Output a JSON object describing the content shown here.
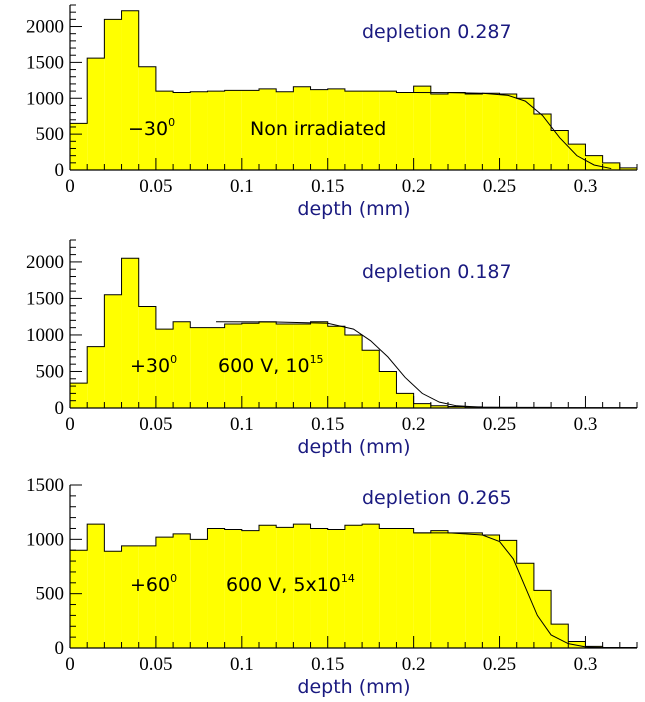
{
  "chart_data": [
    {
      "type": "bar",
      "xlabel": "depth (mm)",
      "xlim": [
        0,
        0.33
      ],
      "ylim": [
        0,
        2300
      ],
      "xticks": [
        "0",
        "0.05",
        "0.1",
        "0.15",
        "0.2",
        "0.25",
        "0.3"
      ],
      "yticks": [
        "0",
        "500",
        "1000",
        "1500",
        "2000"
      ],
      "bin_width": 0.01,
      "x_start": 0,
      "values": [
        650,
        1560,
        2100,
        2220,
        1440,
        1100,
        1080,
        1090,
        1100,
        1110,
        1110,
        1130,
        1090,
        1160,
        1120,
        1130,
        1100,
        1100,
        1100,
        1080,
        1170,
        1060,
        1080,
        1060,
        1070,
        1060,
        1000,
        780,
        550,
        360,
        200,
        100,
        30
      ],
      "fit": {
        "x": [
          0.2,
          0.22,
          0.24,
          0.255,
          0.265,
          0.275,
          0.285,
          0.295,
          0.305,
          0.315
        ],
        "y": [
          1080,
          1078,
          1070,
          1040,
          960,
          760,
          450,
          200,
          70,
          20
        ]
      },
      "annotations": {
        "depletion": "depletion 0.287",
        "angle": "−30",
        "angle_sup": "0",
        "condition": "Non irradiated",
        "condition_sup": ""
      }
    },
    {
      "type": "bar",
      "xlabel": "depth (mm)",
      "xlim": [
        0,
        0.33
      ],
      "ylim": [
        0,
        2300
      ],
      "xticks": [
        "0",
        "0.05",
        "0.1",
        "0.15",
        "0.2",
        "0.25",
        "0.3"
      ],
      "yticks": [
        "0",
        "500",
        "1000",
        "1500",
        "2000"
      ],
      "bin_width": 0.01,
      "x_start": 0,
      "values": [
        340,
        840,
        1550,
        2050,
        1390,
        1080,
        1180,
        1100,
        1100,
        1150,
        1160,
        1180,
        1150,
        1150,
        1180,
        1120,
        1000,
        790,
        500,
        200,
        60,
        30,
        20,
        15,
        10,
        10,
        8,
        8,
        5,
        5,
        5,
        5,
        5
      ],
      "fit": {
        "x": [
          0.085,
          0.12,
          0.15,
          0.165,
          0.175,
          0.185,
          0.195,
          0.205,
          0.215,
          0.225,
          0.24,
          0.26,
          0.33
        ],
        "y": [
          1180,
          1178,
          1160,
          1080,
          920,
          700,
          420,
          200,
          80,
          30,
          10,
          3,
          0
        ]
      },
      "annotations": {
        "depletion": "depletion 0.187",
        "angle": "+30",
        "angle_sup": "0",
        "condition": "600 V, 10",
        "condition_sup": "15"
      }
    },
    {
      "type": "bar",
      "xlabel": "depth (mm)",
      "xlim": [
        0,
        0.33
      ],
      "ylim": [
        0,
        1500
      ],
      "xticks": [
        "0",
        "0.05",
        "0.1",
        "0.15",
        "0.2",
        "0.25",
        "0.3"
      ],
      "yticks": [
        "0",
        "500",
        "1000",
        "1500"
      ],
      "bin_width": 0.01,
      "x_start": 0,
      "values": [
        900,
        1140,
        890,
        940,
        940,
        1020,
        1050,
        1000,
        1100,
        1090,
        1080,
        1130,
        1110,
        1140,
        1100,
        1090,
        1130,
        1140,
        1100,
        1100,
        1060,
        1080,
        1060,
        1060,
        1040,
        990,
        780,
        530,
        220,
        60,
        15,
        5,
        5
      ],
      "fit": {
        "x": [
          0.2,
          0.22,
          0.24,
          0.25,
          0.258,
          0.265,
          0.272,
          0.28,
          0.29,
          0.3,
          0.31,
          0.33
        ],
        "y": [
          1060,
          1060,
          1040,
          980,
          820,
          560,
          300,
          120,
          40,
          10,
          3,
          0
        ]
      },
      "annotations": {
        "depletion": "depletion 0.265",
        "angle": "+60",
        "angle_sup": "0",
        "condition": "600 V, 5x10",
        "condition_sup": "14"
      }
    }
  ],
  "colors": {
    "fill": "#ffff00",
    "edge": "#000000",
    "label": "#1a1a80"
  }
}
